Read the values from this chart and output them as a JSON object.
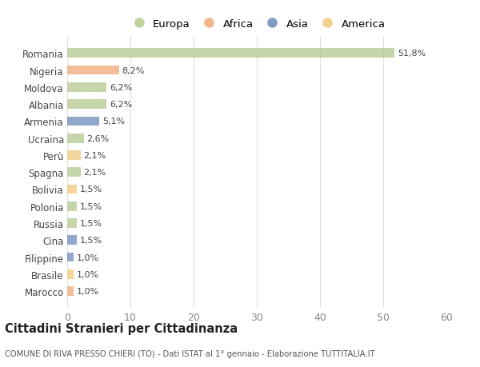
{
  "categories": [
    "Romania",
    "Nigeria",
    "Moldova",
    "Albania",
    "Armenia",
    "Ucraina",
    "Perù",
    "Spagna",
    "Bolivia",
    "Polonia",
    "Russia",
    "Cina",
    "Filippine",
    "Brasile",
    "Marocco"
  ],
  "values": [
    51.8,
    8.2,
    6.2,
    6.2,
    5.1,
    2.6,
    2.1,
    2.1,
    1.5,
    1.5,
    1.5,
    1.5,
    1.0,
    1.0,
    1.0
  ],
  "colors": [
    "#b5c98e",
    "#f0a875",
    "#b5c98e",
    "#b5c98e",
    "#6b8cba",
    "#b5c98e",
    "#f0c97a",
    "#b5c98e",
    "#f0c97a",
    "#b5c98e",
    "#b5c98e",
    "#6b8cba",
    "#6b8cba",
    "#f0c97a",
    "#f0a875"
  ],
  "labels": [
    "51,8%",
    "8,2%",
    "6,2%",
    "6,2%",
    "5,1%",
    "2,6%",
    "2,1%",
    "2,1%",
    "1,5%",
    "1,5%",
    "1,5%",
    "1,5%",
    "1,0%",
    "1,0%",
    "1,0%"
  ],
  "legend": [
    {
      "label": "Europa",
      "color": "#b5c98e"
    },
    {
      "label": "Africa",
      "color": "#f0a875"
    },
    {
      "label": "Asia",
      "color": "#6b8cba"
    },
    {
      "label": "America",
      "color": "#f0c97a"
    }
  ],
  "title": "Cittadini Stranieri per Cittadinanza",
  "subtitle": "COMUNE DI RIVA PRESSO CHIERI (TO) - Dati ISTAT al 1° gennaio - Elaborazione TUTTITALIA.IT",
  "xlim": [
    0,
    60
  ],
  "xticks": [
    0,
    10,
    20,
    30,
    40,
    50,
    60
  ],
  "background_color": "#ffffff",
  "grid_color": "#e0e0e0",
  "bar_alpha": 0.75,
  "bar_height": 0.55
}
